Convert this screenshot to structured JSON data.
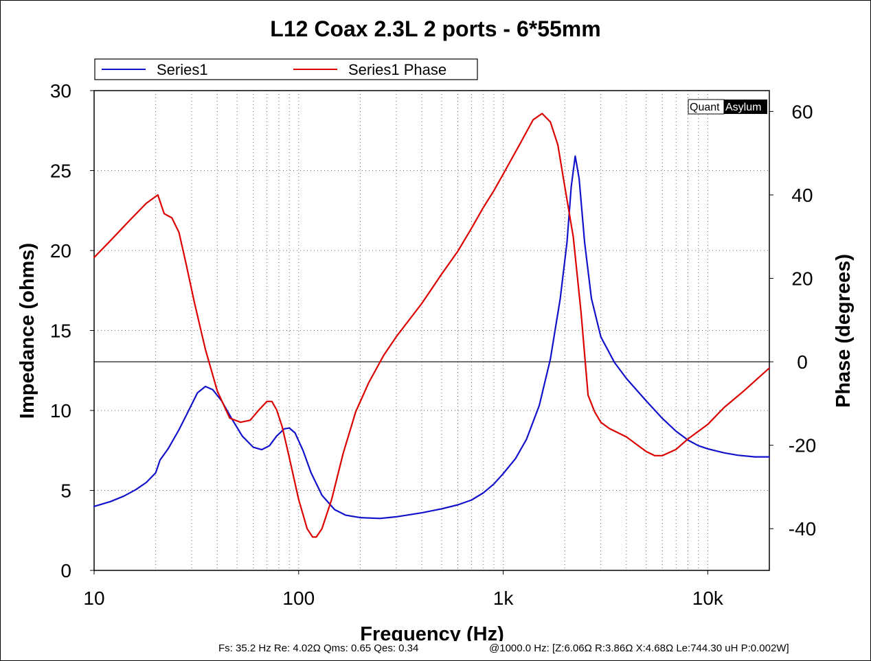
{
  "chart_data": {
    "type": "line",
    "title": "L12 Coax 2.3L 2 ports - 6*55mm",
    "xlabel": "Frequency (Hz)",
    "ylabel": "Impedance (ohms)",
    "y2label": "Phase (degrees)",
    "xscale": "log",
    "xlim": [
      10,
      20000
    ],
    "ylim": [
      0,
      30
    ],
    "y2lim": [
      -50,
      65
    ],
    "grid": true,
    "legend_position": "top-left",
    "x_ticks": [
      {
        "value": 10,
        "label": "10"
      },
      {
        "value": 100,
        "label": "100"
      },
      {
        "value": 1000,
        "label": "1k"
      },
      {
        "value": 10000,
        "label": "10k"
      }
    ],
    "y_ticks": [
      0,
      5,
      10,
      15,
      20,
      25,
      30
    ],
    "y2_ticks": [
      -40,
      -20,
      0,
      20,
      40,
      60
    ],
    "series": [
      {
        "name": "Series1",
        "axis": "left",
        "color": "#1111cc",
        "points": [
          [
            10,
            4.0
          ],
          [
            12,
            4.3
          ],
          [
            14,
            4.65
          ],
          [
            16,
            5.05
          ],
          [
            18,
            5.5
          ],
          [
            20,
            6.1
          ],
          [
            21,
            6.9
          ],
          [
            23,
            7.6
          ],
          [
            26,
            8.8
          ],
          [
            29,
            10.0
          ],
          [
            32,
            11.1
          ],
          [
            35,
            11.5
          ],
          [
            38,
            11.3
          ],
          [
            42,
            10.6
          ],
          [
            47,
            9.5
          ],
          [
            53,
            8.4
          ],
          [
            60,
            7.7
          ],
          [
            66,
            7.55
          ],
          [
            72,
            7.8
          ],
          [
            78,
            8.4
          ],
          [
            85,
            8.85
          ],
          [
            90,
            8.9
          ],
          [
            96,
            8.6
          ],
          [
            105,
            7.5
          ],
          [
            115,
            6.1
          ],
          [
            130,
            4.7
          ],
          [
            150,
            3.8
          ],
          [
            170,
            3.45
          ],
          [
            200,
            3.3
          ],
          [
            250,
            3.25
          ],
          [
            300,
            3.35
          ],
          [
            400,
            3.6
          ],
          [
            500,
            3.85
          ],
          [
            600,
            4.1
          ],
          [
            700,
            4.4
          ],
          [
            800,
            4.85
          ],
          [
            900,
            5.4
          ],
          [
            1000,
            6.05
          ],
          [
            1150,
            7.0
          ],
          [
            1300,
            8.2
          ],
          [
            1500,
            10.3
          ],
          [
            1700,
            13.2
          ],
          [
            1900,
            17.0
          ],
          [
            2050,
            20.5
          ],
          [
            2150,
            24.0
          ],
          [
            2250,
            25.9
          ],
          [
            2350,
            24.5
          ],
          [
            2500,
            20.5
          ],
          [
            2700,
            17.0
          ],
          [
            3000,
            14.6
          ],
          [
            3500,
            13.0
          ],
          [
            4000,
            12.0
          ],
          [
            5000,
            10.6
          ],
          [
            6000,
            9.5
          ],
          [
            7000,
            8.7
          ],
          [
            8000,
            8.15
          ],
          [
            9000,
            7.8
          ],
          [
            10000,
            7.6
          ],
          [
            12000,
            7.35
          ],
          [
            14000,
            7.2
          ],
          [
            17000,
            7.1
          ],
          [
            20000,
            7.1
          ]
        ]
      },
      {
        "name": "Series1 Phase",
        "axis": "right",
        "color": "#dd0000",
        "points": [
          [
            10,
            25.0
          ],
          [
            12,
            29.0
          ],
          [
            15,
            34.0
          ],
          [
            18,
            38.0
          ],
          [
            20.5,
            40.0
          ],
          [
            22,
            35.5
          ],
          [
            24,
            34.5
          ],
          [
            26,
            31.0
          ],
          [
            28,
            24.0
          ],
          [
            31,
            14.0
          ],
          [
            35,
            3.0
          ],
          [
            40,
            -7.0
          ],
          [
            46,
            -13.5
          ],
          [
            52,
            -14.5
          ],
          [
            58,
            -14.0
          ],
          [
            64,
            -11.5
          ],
          [
            70,
            -9.5
          ],
          [
            74,
            -9.5
          ],
          [
            78,
            -11.5
          ],
          [
            83,
            -15.5
          ],
          [
            90,
            -23.0
          ],
          [
            100,
            -33.0
          ],
          [
            110,
            -40.0
          ],
          [
            117,
            -42.0
          ],
          [
            122,
            -42.0
          ],
          [
            130,
            -40.0
          ],
          [
            145,
            -33.0
          ],
          [
            165,
            -22.0
          ],
          [
            190,
            -12.0
          ],
          [
            220,
            -5.0
          ],
          [
            260,
            1.5
          ],
          [
            300,
            6.0
          ],
          [
            400,
            14.0
          ],
          [
            500,
            21.0
          ],
          [
            600,
            26.5
          ],
          [
            700,
            32.0
          ],
          [
            800,
            37.0
          ],
          [
            900,
            41.0
          ],
          [
            1000,
            45.0
          ],
          [
            1200,
            52.0
          ],
          [
            1400,
            58.0
          ],
          [
            1550,
            59.5
          ],
          [
            1700,
            57.5
          ],
          [
            1850,
            52.0
          ],
          [
            2000,
            42.0
          ],
          [
            2200,
            30.0
          ],
          [
            2400,
            12.0
          ],
          [
            2600,
            -8.0
          ],
          [
            2800,
            -12.0
          ],
          [
            3000,
            -14.5
          ],
          [
            3300,
            -16.0
          ],
          [
            4000,
            -18.0
          ],
          [
            5000,
            -21.5
          ],
          [
            5500,
            -22.5
          ],
          [
            6000,
            -22.5
          ],
          [
            7000,
            -21.0
          ],
          [
            8000,
            -18.5
          ],
          [
            10000,
            -15.0
          ],
          [
            12000,
            -11.0
          ],
          [
            15000,
            -7.0
          ],
          [
            20000,
            -1.5
          ]
        ]
      }
    ],
    "watermark": {
      "part1": "Quant",
      "part2": "Asylum"
    },
    "footer_left": "Fs: 35.2 Hz  Re: 4.02Ω  Qms: 0.65  Qes: 0.34",
    "footer_right": "@1000.0 Hz: [Z:6.06Ω  R:3.86Ω  X:4.68Ω Le:744.30 uH  P:0.002W]"
  }
}
